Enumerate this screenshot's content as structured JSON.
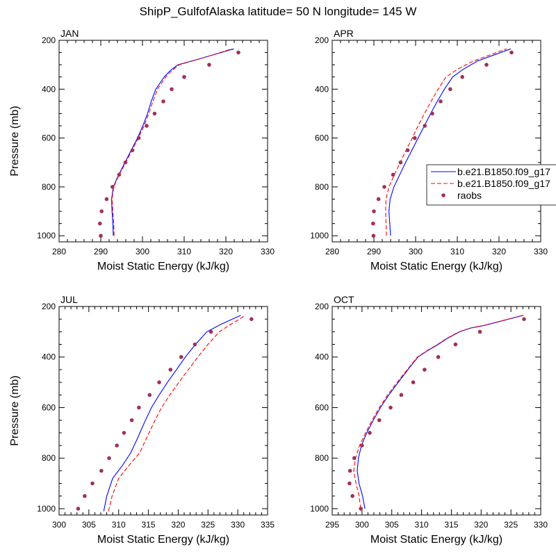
{
  "title": "ShipP_GulfofAlaska  latitude= 50 N longitude= 145 W",
  "chart_data": [
    {
      "type": "line",
      "panel": "JAN",
      "xlabel": "Moist Static Energy (kJ/kg)",
      "ylabel": "Pressure (mb)",
      "xlim": [
        280,
        330
      ],
      "xticks": [
        280,
        290,
        300,
        310,
        320,
        330
      ],
      "ylim": [
        200,
        1025
      ],
      "yticks": [
        200,
        400,
        600,
        800,
        1000
      ],
      "grid": false,
      "series": [
        {
          "name": "b.e21.B1850.f09_g17",
          "style": "solid",
          "color": "#0000ff",
          "x": [
            293.0,
            292.9,
            292.7,
            292.6,
            293.0,
            294.3,
            295.8,
            297.3,
            298.8,
            300.1,
            301.2,
            302.1,
            303.2,
            304.2,
            305.2,
            306.6,
            308.5,
            313.8,
            321.9
          ],
          "y": [
            1000,
            950,
            900,
            850,
            800,
            750,
            700,
            650,
            600,
            550,
            500,
            450,
            400,
            375,
            350,
            325,
            300,
            275,
            235
          ]
        },
        {
          "name": "b.e21.B1850.f09_g17",
          "style": "dashed",
          "color": "#ff0000",
          "x": [
            293.2,
            293.1,
            292.9,
            292.7,
            293.1,
            294.4,
            296.0,
            297.5,
            299.0,
            300.4,
            301.5,
            302.5,
            303.6,
            304.6,
            305.6,
            307.0,
            308.8,
            313.9,
            321.5
          ],
          "y": [
            1000,
            950,
            900,
            850,
            800,
            750,
            700,
            650,
            600,
            550,
            500,
            450,
            400,
            375,
            350,
            325,
            300,
            275,
            235
          ]
        },
        {
          "name": "raobs",
          "style": "markers",
          "color": "#a0305a",
          "x": [
            290.0,
            289.8,
            290.2,
            291.4,
            292.8,
            294.4,
            295.9,
            297.6,
            299.1,
            301.0,
            302.9,
            305.0,
            307.0,
            310.0,
            316.0,
            323.0
          ],
          "y": [
            1000,
            950,
            900,
            850,
            800,
            750,
            700,
            650,
            600,
            550,
            500,
            450,
            400,
            350,
            300,
            250
          ]
        }
      ]
    },
    {
      "type": "line",
      "panel": "APR",
      "xlabel": "Moist Static Energy (kJ/kg)",
      "ylabel": "",
      "xlim": [
        280,
        330
      ],
      "xticks": [
        280,
        290,
        300,
        310,
        320,
        330
      ],
      "ylim": [
        200,
        1025
      ],
      "yticks": [
        200,
        400,
        600,
        800,
        1000
      ],
      "grid": false,
      "legend_position": "right",
      "series": [
        {
          "name": "b.e21.B1850.f09_g17",
          "style": "solid",
          "color": "#0000ff",
          "x": [
            294.0,
            293.8,
            293.6,
            293.9,
            294.8,
            296.2,
            297.6,
            299.1,
            300.6,
            302.1,
            303.6,
            305.2,
            306.9,
            308.9,
            311.3,
            314.8,
            322.8
          ],
          "y": [
            1000,
            950,
            900,
            850,
            800,
            750,
            700,
            650,
            600,
            550,
            500,
            450,
            400,
            350,
            320,
            285,
            235
          ]
        },
        {
          "name": "b.e21.B1850.f09_g17",
          "style": "dashed",
          "color": "#ff0000",
          "x": [
            293.0,
            292.9,
            292.8,
            292.9,
            293.6,
            294.9,
            296.3,
            297.7,
            299.2,
            300.6,
            302.1,
            303.7,
            305.4,
            307.3,
            309.9,
            313.8,
            321.8
          ],
          "y": [
            1000,
            950,
            900,
            850,
            800,
            750,
            700,
            650,
            600,
            550,
            500,
            450,
            400,
            350,
            320,
            285,
            235
          ]
        },
        {
          "name": "raobs",
          "style": "markers",
          "color": "#a0305a",
          "x": [
            289.9,
            289.8,
            290.0,
            291.1,
            292.5,
            294.6,
            296.4,
            298.1,
            299.8,
            302.2,
            304.0,
            306.0,
            308.3,
            311.2,
            317.0,
            323.0
          ],
          "y": [
            1000,
            950,
            900,
            850,
            800,
            750,
            700,
            650,
            600,
            550,
            500,
            450,
            400,
            350,
            300,
            250
          ]
        }
      ],
      "legend": [
        "b.e21.B1850.f09_g17",
        "b.e21.B1850.f09_g17",
        "raobs"
      ]
    },
    {
      "type": "line",
      "panel": "JUL",
      "xlabel": "Moist Static Energy (kJ/kg)",
      "ylabel": "Pressure (mb)",
      "xlim": [
        300,
        335
      ],
      "xticks": [
        300,
        305,
        310,
        315,
        320,
        325,
        330,
        335
      ],
      "ylim": [
        200,
        1025
      ],
      "yticks": [
        200,
        400,
        600,
        800,
        1000
      ],
      "grid": false,
      "series": [
        {
          "name": "b.e21.B1850.f09_g17",
          "style": "solid",
          "color": "#0000ff",
          "x": [
            307.5,
            308.0,
            309.0,
            310.6,
            312.0,
            313.2,
            314.3,
            315.5,
            316.8,
            318.2,
            319.7,
            321.2,
            322.9,
            324.8,
            327.2,
            330.5
          ],
          "y": [
            1010,
            950,
            880,
            830,
            780,
            720,
            660,
            600,
            550,
            500,
            450,
            400,
            350,
            300,
            270,
            235
          ]
        },
        {
          "name": "b.e21.B1850.f09_g17",
          "style": "dashed",
          "color": "#ff0000",
          "x": [
            308.3,
            308.9,
            310.0,
            311.7,
            313.5,
            314.7,
            315.9,
            317.2,
            318.6,
            320.1,
            321.7,
            323.3,
            325.0,
            326.9,
            328.2,
            331.3
          ],
          "y": [
            1010,
            950,
            880,
            830,
            780,
            720,
            660,
            600,
            550,
            500,
            450,
            400,
            350,
            300,
            280,
            235
          ]
        },
        {
          "name": "raobs",
          "style": "markers",
          "color": "#a0305a",
          "x": [
            303.2,
            304.3,
            305.6,
            307.1,
            308.4,
            309.7,
            310.9,
            312.2,
            313.4,
            315.2,
            316.8,
            318.7,
            320.5,
            322.8,
            325.5,
            332.3
          ],
          "y": [
            1000,
            950,
            900,
            850,
            800,
            750,
            700,
            650,
            600,
            550,
            500,
            450,
            400,
            350,
            300,
            250
          ]
        }
      ]
    },
    {
      "type": "line",
      "panel": "OCT",
      "xlabel": "Moist Static Energy (kJ/kg)",
      "ylabel": "",
      "xlim": [
        295,
        330
      ],
      "xticks": [
        295,
        300,
        305,
        310,
        315,
        320,
        325,
        330
      ],
      "ylim": [
        200,
        1025
      ],
      "yticks": [
        200,
        400,
        600,
        800,
        1000
      ],
      "grid": false,
      "series": [
        {
          "name": "b.e21.B1850.f09_g17",
          "style": "solid",
          "color": "#0000ff",
          "x": [
            300.5,
            300.1,
            299.5,
            299.2,
            299.4,
            299.9,
            300.8,
            301.9,
            303.1,
            304.5,
            306.1,
            307.7,
            309.4,
            311.0,
            312.8,
            314.4,
            316.4,
            318.3,
            320.5,
            327.1
          ],
          "y": [
            1000,
            950,
            900,
            850,
            800,
            750,
            700,
            650,
            600,
            550,
            500,
            450,
            400,
            375,
            350,
            325,
            300,
            285,
            275,
            235
          ]
        },
        {
          "name": "b.e21.B1850.f09_g17",
          "style": "dashed",
          "color": "#ff0000",
          "x": [
            299.8,
            299.5,
            299.0,
            298.6,
            298.9,
            299.6,
            300.6,
            301.7,
            302.9,
            304.3,
            305.9,
            307.6,
            309.3,
            310.9,
            312.7,
            314.3,
            316.3,
            318.2,
            320.4,
            327.0
          ],
          "y": [
            1000,
            950,
            900,
            850,
            800,
            750,
            700,
            650,
            600,
            550,
            500,
            450,
            400,
            375,
            350,
            325,
            300,
            285,
            275,
            235
          ]
        },
        {
          "name": "raobs",
          "style": "markers",
          "color": "#a0305a",
          "x": [
            299.8,
            298.4,
            297.9,
            298.0,
            298.7,
            300.0,
            301.3,
            302.9,
            304.8,
            306.6,
            308.6,
            310.5,
            312.8,
            315.7,
            319.8,
            327.2
          ],
          "y": [
            1000,
            950,
            900,
            850,
            800,
            750,
            700,
            650,
            600,
            550,
            500,
            450,
            400,
            350,
            300,
            250
          ]
        }
      ]
    }
  ]
}
